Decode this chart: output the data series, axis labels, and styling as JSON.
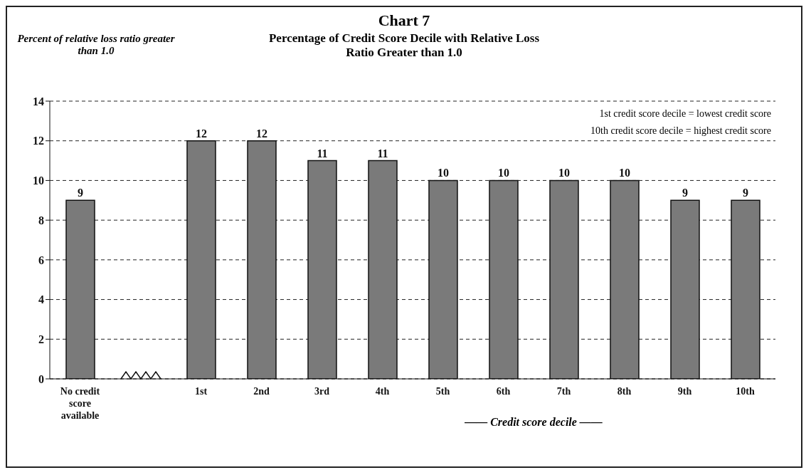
{
  "chart_data": {
    "type": "bar",
    "title": "Chart 7",
    "subtitle": "Percentage of Credit Score Decile with Relative Loss Ratio Greater than 1.0",
    "ylabel": "Percent of relative loss ratio greater than 1.0",
    "xlabel": "—— Credit score decile ——",
    "categories": [
      "No credit score available",
      null,
      "1st",
      "2nd",
      "3rd",
      "4th",
      "5th",
      "6th",
      "7th",
      "8th",
      "9th",
      "10th"
    ],
    "values": [
      9,
      null,
      12,
      12,
      11,
      11,
      10,
      10,
      10,
      10,
      9,
      9
    ],
    "color": "#7a7a7a",
    "ylim": [
      0,
      14
    ],
    "yticks": [
      0,
      2,
      4,
      6,
      8,
      10,
      12,
      14
    ],
    "grid": "y",
    "data_labels": true,
    "annotations": [
      "1st credit score decile = lowest credit score",
      "10th credit score decile = highest credit score"
    ]
  }
}
